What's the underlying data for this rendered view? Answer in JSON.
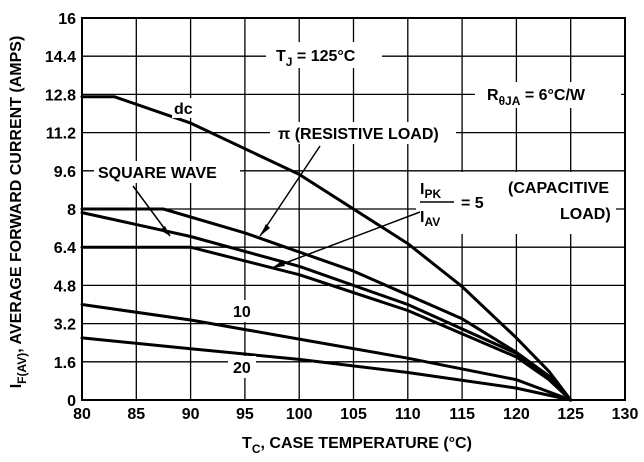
{
  "chart_data": {
    "type": "line",
    "xlabel": "T",
    "xlabel_sub": "C",
    "xlabel_rest": ", CASE TEMPERATURE (°C)",
    "ylabel": "I",
    "ylabel_sub": "F(AV)",
    "ylabel_rest": ", AVERAGE FORWARD CURRENT (AMPS)",
    "xlim": [
      80,
      130
    ],
    "ylim": [
      0,
      16
    ],
    "x_ticks": [
      "80",
      "85",
      "90",
      "95",
      "100",
      "105",
      "110",
      "115",
      "120",
      "125",
      "130"
    ],
    "y_ticks": [
      "0",
      "1.6",
      "3.2",
      "4.8",
      "6.4",
      "8",
      "9.6",
      "11.2",
      "12.8",
      "14.4",
      "16"
    ],
    "grid": true,
    "series": [
      {
        "name": "dc",
        "x": [
          80,
          83,
          90,
          100,
          110,
          115,
          120,
          123,
          125
        ],
        "y": [
          12.7,
          12.7,
          11.6,
          9.45,
          6.55,
          4.75,
          2.6,
          1.2,
          0
        ]
      },
      {
        "name": "π (RESISTIVE LOAD)",
        "x": [
          80,
          87.5,
          95,
          105,
          115,
          120,
          123,
          125
        ],
        "y": [
          8.0,
          8.0,
          7.0,
          5.4,
          3.4,
          2.0,
          1.0,
          0
        ]
      },
      {
        "name": "SQUARE WAVE",
        "x": [
          80,
          90,
          100,
          110,
          120,
          123,
          125
        ],
        "y": [
          7.85,
          6.85,
          5.6,
          4.0,
          1.95,
          0.9,
          0
        ]
      },
      {
        "name": "5",
        "x": [
          80,
          90,
          100,
          110,
          120,
          123,
          125
        ],
        "y": [
          6.4,
          6.4,
          5.25,
          3.75,
          1.8,
          0.85,
          0
        ]
      },
      {
        "name": "10",
        "x": [
          80,
          90,
          100,
          110,
          120,
          125
        ],
        "y": [
          4.0,
          3.35,
          2.55,
          1.75,
          0.85,
          0
        ]
      },
      {
        "name": "20",
        "x": [
          80,
          90,
          100,
          110,
          120,
          125
        ],
        "y": [
          2.6,
          2.15,
          1.7,
          1.15,
          0.5,
          0
        ]
      }
    ],
    "annotations": {
      "tj_main": "T",
      "tj_sub": "J",
      "tj_rest": " = 125°C",
      "rth_main": "R",
      "rth_sub": "θJA",
      "rth_rest": " = 6°C/W",
      "dc": "dc",
      "resistive": "π (RESISTIVE LOAD)",
      "square": "SQUARE WAVE",
      "frac_num_main": "I",
      "frac_num_sub": "PK",
      "frac_den_main": "I",
      "frac_den_sub": "AV",
      "frac_eq": "= 5",
      "capacitive_1": "(CAPACITIVE",
      "capacitive_2": "LOAD)",
      "label_10": "10",
      "label_20": "20"
    }
  }
}
